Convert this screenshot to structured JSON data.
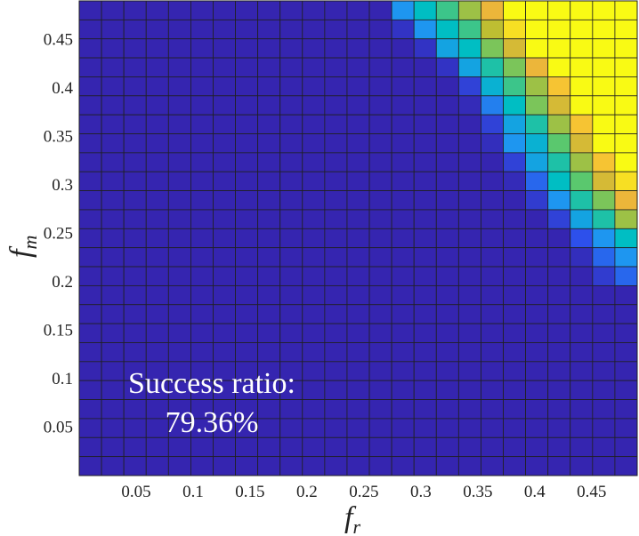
{
  "chart_data": {
    "type": "heatmap",
    "xlabel": "f",
    "xlabel_sub": "r",
    "ylabel": "f",
    "ylabel_sub": "m",
    "x_range": [
      0,
      0.49
    ],
    "y_range": [
      0,
      0.49
    ],
    "x_ticks": [
      0.05,
      0.1,
      0.15,
      0.2,
      0.25,
      0.3,
      0.35,
      0.4,
      0.45
    ],
    "x_tick_labels": [
      "0.05",
      "0.1",
      "0.15",
      "0.2",
      "0.25",
      "0.3",
      "0.35",
      "0.4",
      "0.45"
    ],
    "y_ticks": [
      0.05,
      0.1,
      0.15,
      0.2,
      0.25,
      0.3,
      0.35,
      0.4,
      0.45
    ],
    "y_tick_labels": [
      "0.05",
      "0.1",
      "0.15",
      "0.2",
      "0.25",
      "0.3",
      "0.35",
      "0.4",
      "0.45"
    ],
    "grid_size": 25,
    "cell_step": 0.0196,
    "colormap": "parula",
    "colors": {
      "low": "#3525b0",
      "high": "#f9fa14",
      "cell_border": "#202020"
    },
    "value_description": "success ratio per (f_r, f_m) cell, 0 (blue) to 1 (yellow); cells with f_r + f_m below ~0.8 are 0",
    "values_rows_top_to_bottom": [
      [
        0,
        0,
        0,
        0,
        0,
        0,
        0,
        0,
        0,
        0,
        0,
        0,
        0,
        0,
        0.3,
        0.45,
        0.55,
        0.7,
        0.85,
        1,
        1,
        1,
        1,
        1,
        1
      ],
      [
        0,
        0,
        0,
        0,
        0,
        0,
        0,
        0,
        0,
        0,
        0,
        0,
        0,
        0,
        0.05,
        0.3,
        0.45,
        0.55,
        0.75,
        0.95,
        1,
        1,
        1,
        1,
        1
      ],
      [
        0,
        0,
        0,
        0,
        0,
        0,
        0,
        0,
        0,
        0,
        0,
        0,
        0,
        0,
        0,
        0.05,
        0.35,
        0.45,
        0.65,
        0.8,
        1,
        1,
        1,
        1,
        1
      ],
      [
        0,
        0,
        0,
        0,
        0,
        0,
        0,
        0,
        0,
        0,
        0,
        0,
        0,
        0,
        0,
        0,
        0.05,
        0.35,
        0.5,
        0.65,
        0.85,
        1,
        1,
        1,
        1
      ],
      [
        0,
        0,
        0,
        0,
        0,
        0,
        0,
        0,
        0,
        0,
        0,
        0,
        0,
        0,
        0,
        0,
        0,
        0.1,
        0.4,
        0.55,
        0.7,
        0.9,
        1,
        1,
        1
      ],
      [
        0,
        0,
        0,
        0,
        0,
        0,
        0,
        0,
        0,
        0,
        0,
        0,
        0,
        0,
        0,
        0,
        0,
        0.02,
        0.25,
        0.45,
        0.65,
        0.8,
        1,
        1,
        1
      ],
      [
        0,
        0,
        0,
        0,
        0,
        0,
        0,
        0,
        0,
        0,
        0,
        0,
        0,
        0,
        0,
        0,
        0,
        0,
        0.1,
        0.35,
        0.5,
        0.7,
        0.9,
        1,
        1
      ],
      [
        0,
        0,
        0,
        0,
        0,
        0,
        0,
        0,
        0,
        0,
        0,
        0,
        0,
        0,
        0,
        0,
        0,
        0,
        0.03,
        0.3,
        0.4,
        0.6,
        0.8,
        1,
        1
      ],
      [
        0,
        0,
        0,
        0,
        0,
        0,
        0,
        0,
        0,
        0,
        0,
        0,
        0,
        0,
        0,
        0,
        0,
        0,
        0,
        0.1,
        0.35,
        0.5,
        0.7,
        0.9,
        1
      ],
      [
        0,
        0,
        0,
        0,
        0,
        0,
        0,
        0,
        0,
        0,
        0,
        0,
        0,
        0,
        0,
        0,
        0,
        0,
        0,
        0.02,
        0.2,
        0.45,
        0.6,
        0.8,
        0.95
      ],
      [
        0,
        0,
        0,
        0,
        0,
        0,
        0,
        0,
        0,
        0,
        0,
        0,
        0,
        0,
        0,
        0,
        0,
        0,
        0,
        0,
        0.08,
        0.3,
        0.5,
        0.65,
        0.85
      ],
      [
        0,
        0,
        0,
        0,
        0,
        0,
        0,
        0,
        0,
        0,
        0,
        0,
        0,
        0,
        0,
        0,
        0,
        0,
        0,
        0,
        0,
        0.1,
        0.35,
        0.5,
        0.7
      ],
      [
        0,
        0,
        0,
        0,
        0,
        0,
        0,
        0,
        0,
        0,
        0,
        0,
        0,
        0,
        0,
        0,
        0,
        0,
        0,
        0,
        0,
        0,
        0.15,
        0.3,
        0.45
      ],
      [
        0,
        0,
        0,
        0,
        0,
        0,
        0,
        0,
        0,
        0,
        0,
        0,
        0,
        0,
        0,
        0,
        0,
        0,
        0,
        0,
        0,
        0,
        0.03,
        0.2,
        0.3
      ],
      [
        0,
        0,
        0,
        0,
        0,
        0,
        0,
        0,
        0,
        0,
        0,
        0,
        0,
        0,
        0,
        0,
        0,
        0,
        0,
        0,
        0,
        0,
        0,
        0.08,
        0.2
      ],
      [
        0,
        0,
        0,
        0,
        0,
        0,
        0,
        0,
        0,
        0,
        0,
        0,
        0,
        0,
        0,
        0,
        0,
        0,
        0,
        0,
        0,
        0,
        0,
        0,
        0
      ],
      [
        0,
        0,
        0,
        0,
        0,
        0,
        0,
        0,
        0,
        0,
        0,
        0,
        0,
        0,
        0,
        0,
        0,
        0,
        0,
        0,
        0,
        0,
        0,
        0,
        0
      ],
      [
        0,
        0,
        0,
        0,
        0,
        0,
        0,
        0,
        0,
        0,
        0,
        0,
        0,
        0,
        0,
        0,
        0,
        0,
        0,
        0,
        0,
        0,
        0,
        0,
        0
      ],
      [
        0,
        0,
        0,
        0,
        0,
        0,
        0,
        0,
        0,
        0,
        0,
        0,
        0,
        0,
        0,
        0,
        0,
        0,
        0,
        0,
        0,
        0,
        0,
        0,
        0
      ],
      [
        0,
        0,
        0,
        0,
        0,
        0,
        0,
        0,
        0,
        0,
        0,
        0,
        0,
        0,
        0,
        0,
        0,
        0,
        0,
        0,
        0,
        0,
        0,
        0,
        0
      ],
      [
        0,
        0,
        0,
        0,
        0,
        0,
        0,
        0,
        0,
        0,
        0,
        0,
        0,
        0,
        0,
        0,
        0,
        0,
        0,
        0,
        0,
        0,
        0,
        0,
        0
      ],
      [
        0,
        0,
        0,
        0,
        0,
        0,
        0,
        0,
        0,
        0,
        0,
        0,
        0,
        0,
        0,
        0,
        0,
        0,
        0,
        0,
        0,
        0,
        0,
        0,
        0
      ],
      [
        0,
        0,
        0,
        0,
        0,
        0,
        0,
        0,
        0,
        0,
        0,
        0,
        0,
        0,
        0,
        0,
        0,
        0,
        0,
        0,
        0,
        0,
        0,
        0,
        0
      ],
      [
        0,
        0,
        0,
        0,
        0,
        0,
        0,
        0,
        0,
        0,
        0,
        0,
        0,
        0,
        0,
        0,
        0,
        0,
        0,
        0,
        0,
        0,
        0,
        0,
        0
      ],
      [
        0,
        0,
        0,
        0,
        0,
        0,
        0,
        0,
        0,
        0,
        0,
        0,
        0,
        0,
        0,
        0,
        0,
        0,
        0,
        0,
        0,
        0,
        0,
        0,
        0
      ]
    ],
    "annotation": {
      "line1": "Success ratio:",
      "line2": "79.36%"
    },
    "legend": "none",
    "grid": "cell borders"
  }
}
